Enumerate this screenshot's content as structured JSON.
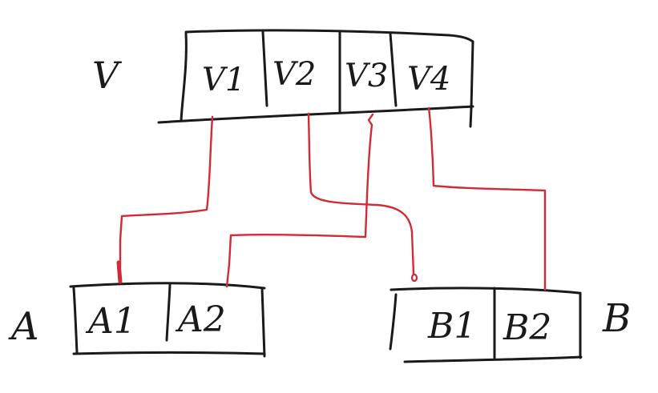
{
  "diagram": {
    "ink_color": "#1a1a1a",
    "link_color": "#d22a36",
    "V": {
      "label": "V",
      "cells": [
        "V1",
        "V2",
        "V3",
        "V4"
      ]
    },
    "A": {
      "label": "A",
      "cells": [
        "A1",
        "A2"
      ]
    },
    "B": {
      "label": "B",
      "cells": [
        "B1",
        "B2"
      ]
    },
    "links": [
      {
        "from": "V1",
        "to": "A1"
      },
      {
        "from": "V2",
        "to": "B1"
      },
      {
        "from": "V3",
        "to": "A2"
      },
      {
        "from": "V4",
        "to": "B2"
      }
    ]
  }
}
